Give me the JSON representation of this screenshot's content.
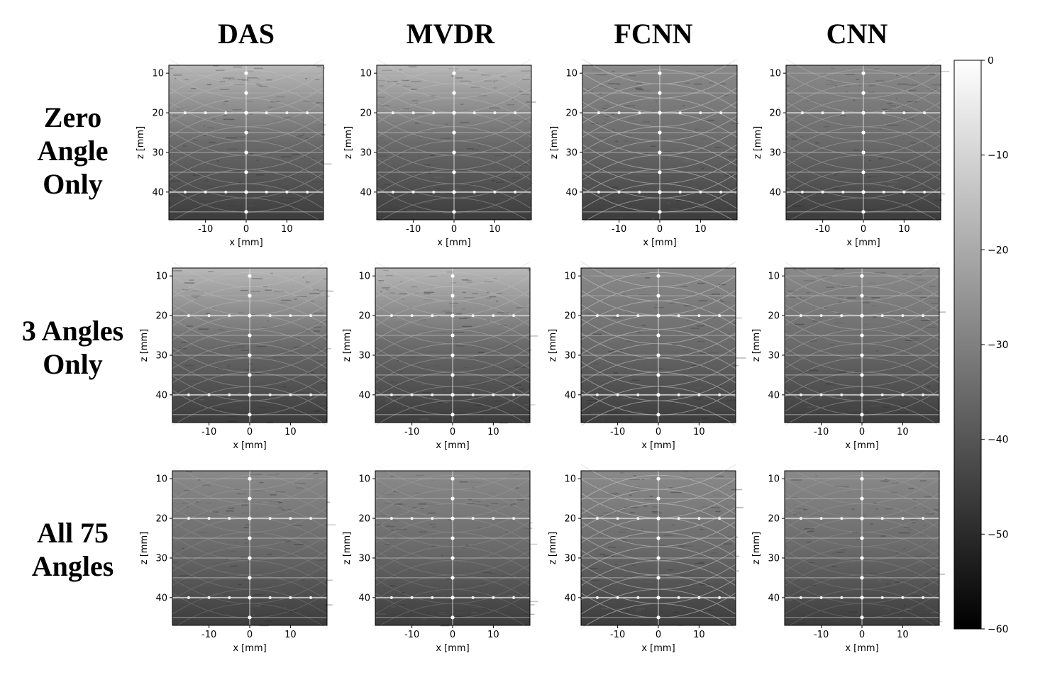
{
  "column_titles": [
    "DAS",
    "MVDR",
    "FCNN",
    "CNN"
  ],
  "row_titles": [
    [
      "Zero",
      "Angle",
      "Only"
    ],
    [
      "3 Angles",
      "Only"
    ],
    [
      "All 75",
      "Angles"
    ]
  ],
  "axes": {
    "xlabel": "x [mm]",
    "ylabel": "z [mm]",
    "xticks": [
      "-10",
      "0",
      "10"
    ],
    "yticks": [
      "10",
      "20",
      "30",
      "40"
    ]
  },
  "colorbar": {
    "ticks": [
      "0",
      "−10",
      "−20",
      "−30",
      "−40",
      "−50",
      "−60"
    ],
    "range": [
      -60,
      0
    ],
    "colormap": "gray"
  },
  "colors": {
    "background": "#ffffff",
    "text": "#000000"
  }
}
